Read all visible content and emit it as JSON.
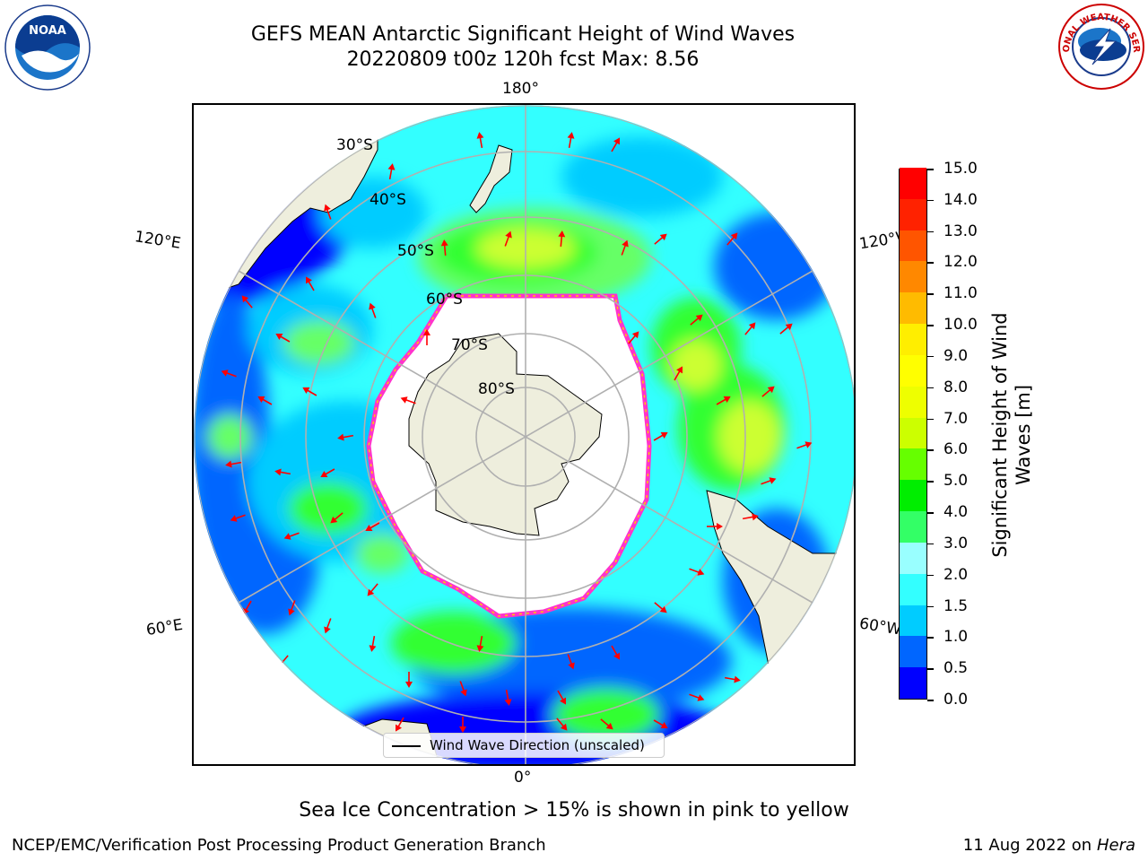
{
  "header": {
    "title_line1": "GEFS MEAN Antarctic Significant Height of Wind Waves",
    "title_line2": "20220809 t00z 120h fcst   Max: 8.56"
  },
  "logos": {
    "left": {
      "name": "NOAA",
      "ring_text": "NATIONAL OCEANIC AND ATMOSPHERIC ADMINISTRATION · U.S. DEPARTMENT OF COMMERCE"
    },
    "right": {
      "name": "NATIONAL WEATHER SERVICE"
    }
  },
  "map": {
    "projection": "south-polar-stereographic",
    "longitude_labels": {
      "top": "180°",
      "bottom": "0°",
      "left_upper": "120°E",
      "left_lower": "60°E",
      "right_upper": "120°W",
      "right_lower": "60°W"
    },
    "latitude_labels": [
      "30°S",
      "40°S",
      "50°S",
      "60°S",
      "70°S",
      "80°S"
    ],
    "arrow_color": "#ff0000",
    "ice_edge_colors": [
      "#ff33cc",
      "#ffcc00"
    ],
    "land_color": "#eeeedd"
  },
  "legend": {
    "label": "Wind Wave Direction (unscaled)"
  },
  "colorbar": {
    "title_line1": "Significant Height of Wind",
    "title_line2": "Waves [m]",
    "ticks": [
      "0.0",
      "0.5",
      "1.0",
      "1.5",
      "2.0",
      "3.0",
      "4.0",
      "5.0",
      "6.0",
      "7.0",
      "8.0",
      "9.0",
      "10.0",
      "11.0",
      "12.0",
      "13.0",
      "14.0",
      "15.0"
    ],
    "colors": [
      "#0000ff",
      "#0066ff",
      "#00ccff",
      "#33ffff",
      "#99ffff",
      "#33ff66",
      "#00ee00",
      "#66ff00",
      "#ccff00",
      "#eeff00",
      "#ffff00",
      "#ffee00",
      "#ffbb00",
      "#ff8800",
      "#ff5500",
      "#ff2200",
      "#ff0000"
    ]
  },
  "footer": {
    "note": "Sea Ice Concentration > 15% is shown in pink to yellow",
    "left": "NCEP/EMC/Verification Post Processing Product Generation Branch",
    "right_date": "11 Aug 2022 on",
    "right_machine": "Hera"
  }
}
